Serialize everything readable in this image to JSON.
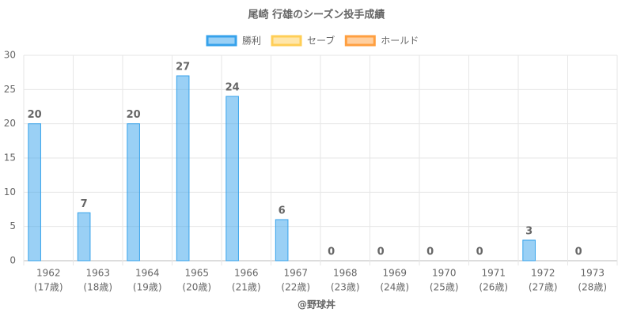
{
  "chart_data": {
    "type": "bar",
    "title": "尾崎 行雄のシーズン投手成績",
    "categories": [
      [
        "1962",
        "(17歳)"
      ],
      [
        "1963",
        "(18歳)"
      ],
      [
        "1964",
        "(19歳)"
      ],
      [
        "1965",
        "(20歳)"
      ],
      [
        "1966",
        "(21歳)"
      ],
      [
        "1967",
        "(22歳)"
      ],
      [
        "1968",
        "(23歳)"
      ],
      [
        "1969",
        "(24歳)"
      ],
      [
        "1970",
        "(25歳)"
      ],
      [
        "1971",
        "(26歳)"
      ],
      [
        "1972",
        "(27歳)"
      ],
      [
        "1973",
        "(28歳)"
      ]
    ],
    "series": [
      {
        "name": "勝利",
        "color": "#36a2eb",
        "values": [
          20,
          7,
          20,
          27,
          24,
          6,
          0,
          0,
          0,
          0,
          3,
          0
        ],
        "show_labels": true
      },
      {
        "name": "セーブ",
        "color": "#ffce56",
        "values": [
          0,
          0,
          0,
          0,
          0,
          0,
          0,
          0,
          0,
          0,
          0,
          0
        ],
        "show_labels": false
      },
      {
        "name": "ホールド",
        "color": "#ff9f40",
        "values": [
          0,
          0,
          0,
          0,
          0,
          0,
          0,
          0,
          0,
          0,
          0,
          0
        ],
        "show_labels": false
      }
    ],
    "ylim": [
      0,
      30
    ],
    "yticks": [
      0,
      5,
      10,
      15,
      20,
      25,
      30
    ],
    "grid": true,
    "footer": "@野球丼"
  }
}
